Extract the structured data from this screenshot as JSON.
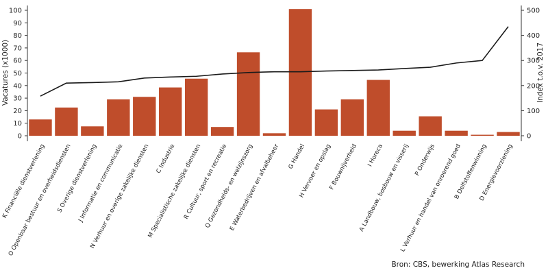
{
  "chart_data": {
    "type": "bar",
    "categories": [
      "K Financiële dienstverlening",
      "O Openbaar bestuur en overheidsdiensten",
      "S Overige dienstverlening",
      "J Informatie en communicatie",
      "N Verhuur en overige zakelijke diensten",
      "C Industrie",
      "M Specialistische zakelijke diensten",
      "R Cultuur, sport en recreatie",
      "Q Gezondheids- en welzijnszorg",
      "E Waterbedrijven en afvalbeheer",
      "G Handel",
      "H Vervoer en opslag",
      "F Bouwnijverheid",
      "I Horeca",
      "A Landbouw, bosbouw en visserij",
      "P Onderwijs",
      "L Verhuur en handel van onroerend goed",
      "B Delfstoffenwinning",
      "D Energievoorziening"
    ],
    "series": [
      {
        "type": "bar",
        "axis": "left",
        "values": [
          13,
          22.5,
          7.5,
          29,
          31,
          38.5,
          45.5,
          7,
          66.5,
          2,
          101,
          21,
          29,
          44.5,
          4,
          15.5,
          4,
          0.8,
          3
        ]
      },
      {
        "type": "line",
        "axis": "right",
        "values": [
          158,
          210,
          212,
          215,
          230,
          234,
          237,
          246,
          252,
          255,
          255,
          258,
          260,
          262,
          268,
          273,
          290,
          300,
          435
        ]
      }
    ],
    "ylabel": "Vacatures (x1000)",
    "ylim": [
      0,
      105
    ],
    "yticks": [
      0,
      10,
      20,
      30,
      40,
      50,
      60,
      70,
      80,
      90,
      100
    ],
    "y2label": "Index t.o.v. 2017",
    "y2lim": [
      -15,
      525
    ],
    "y2ticks": [
      0,
      100,
      200,
      300,
      400,
      500
    ],
    "grid": false,
    "legend": "none",
    "source": "Bron: CBS, bewerking Atlas Research",
    "colors": {
      "bar": "#bf4d2b",
      "line": "#1a1a1a",
      "axis": "#333333",
      "text": "#222222"
    }
  }
}
